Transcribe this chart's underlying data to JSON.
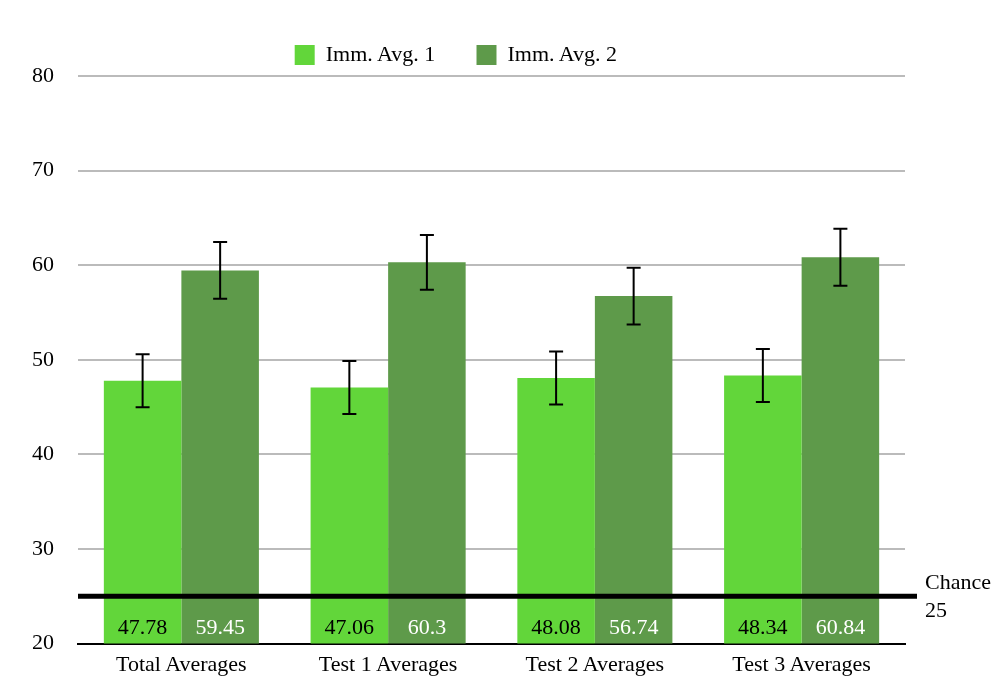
{
  "chart_data": {
    "type": "bar",
    "categories": [
      "Total Averages",
      "Test 1 Averages",
      "Test 2 Averages",
      "Test 3 Averages"
    ],
    "series": [
      {
        "name": "Imm. Avg. 1",
        "color": "#62d63a",
        "values": [
          47.78,
          47.06,
          48.08,
          48.34
        ],
        "errors": [
          2.8,
          2.8,
          2.8,
          2.8
        ]
      },
      {
        "name": "Imm. Avg. 2",
        "color": "#5e9a4a",
        "values": [
          59.45,
          60.3,
          56.74,
          60.84
        ],
        "errors": [
          3,
          2.9,
          3,
          3
        ]
      }
    ],
    "ylim": [
      20,
      80
    ],
    "yticks": [
      20,
      30,
      40,
      50,
      60,
      70,
      80
    ],
    "grid": "y",
    "legend": "top",
    "data_labels": true,
    "ref_lines": [
      {
        "axis": "y",
        "value": 25,
        "label": "Chance 25",
        "color": "#000000"
      }
    ]
  }
}
